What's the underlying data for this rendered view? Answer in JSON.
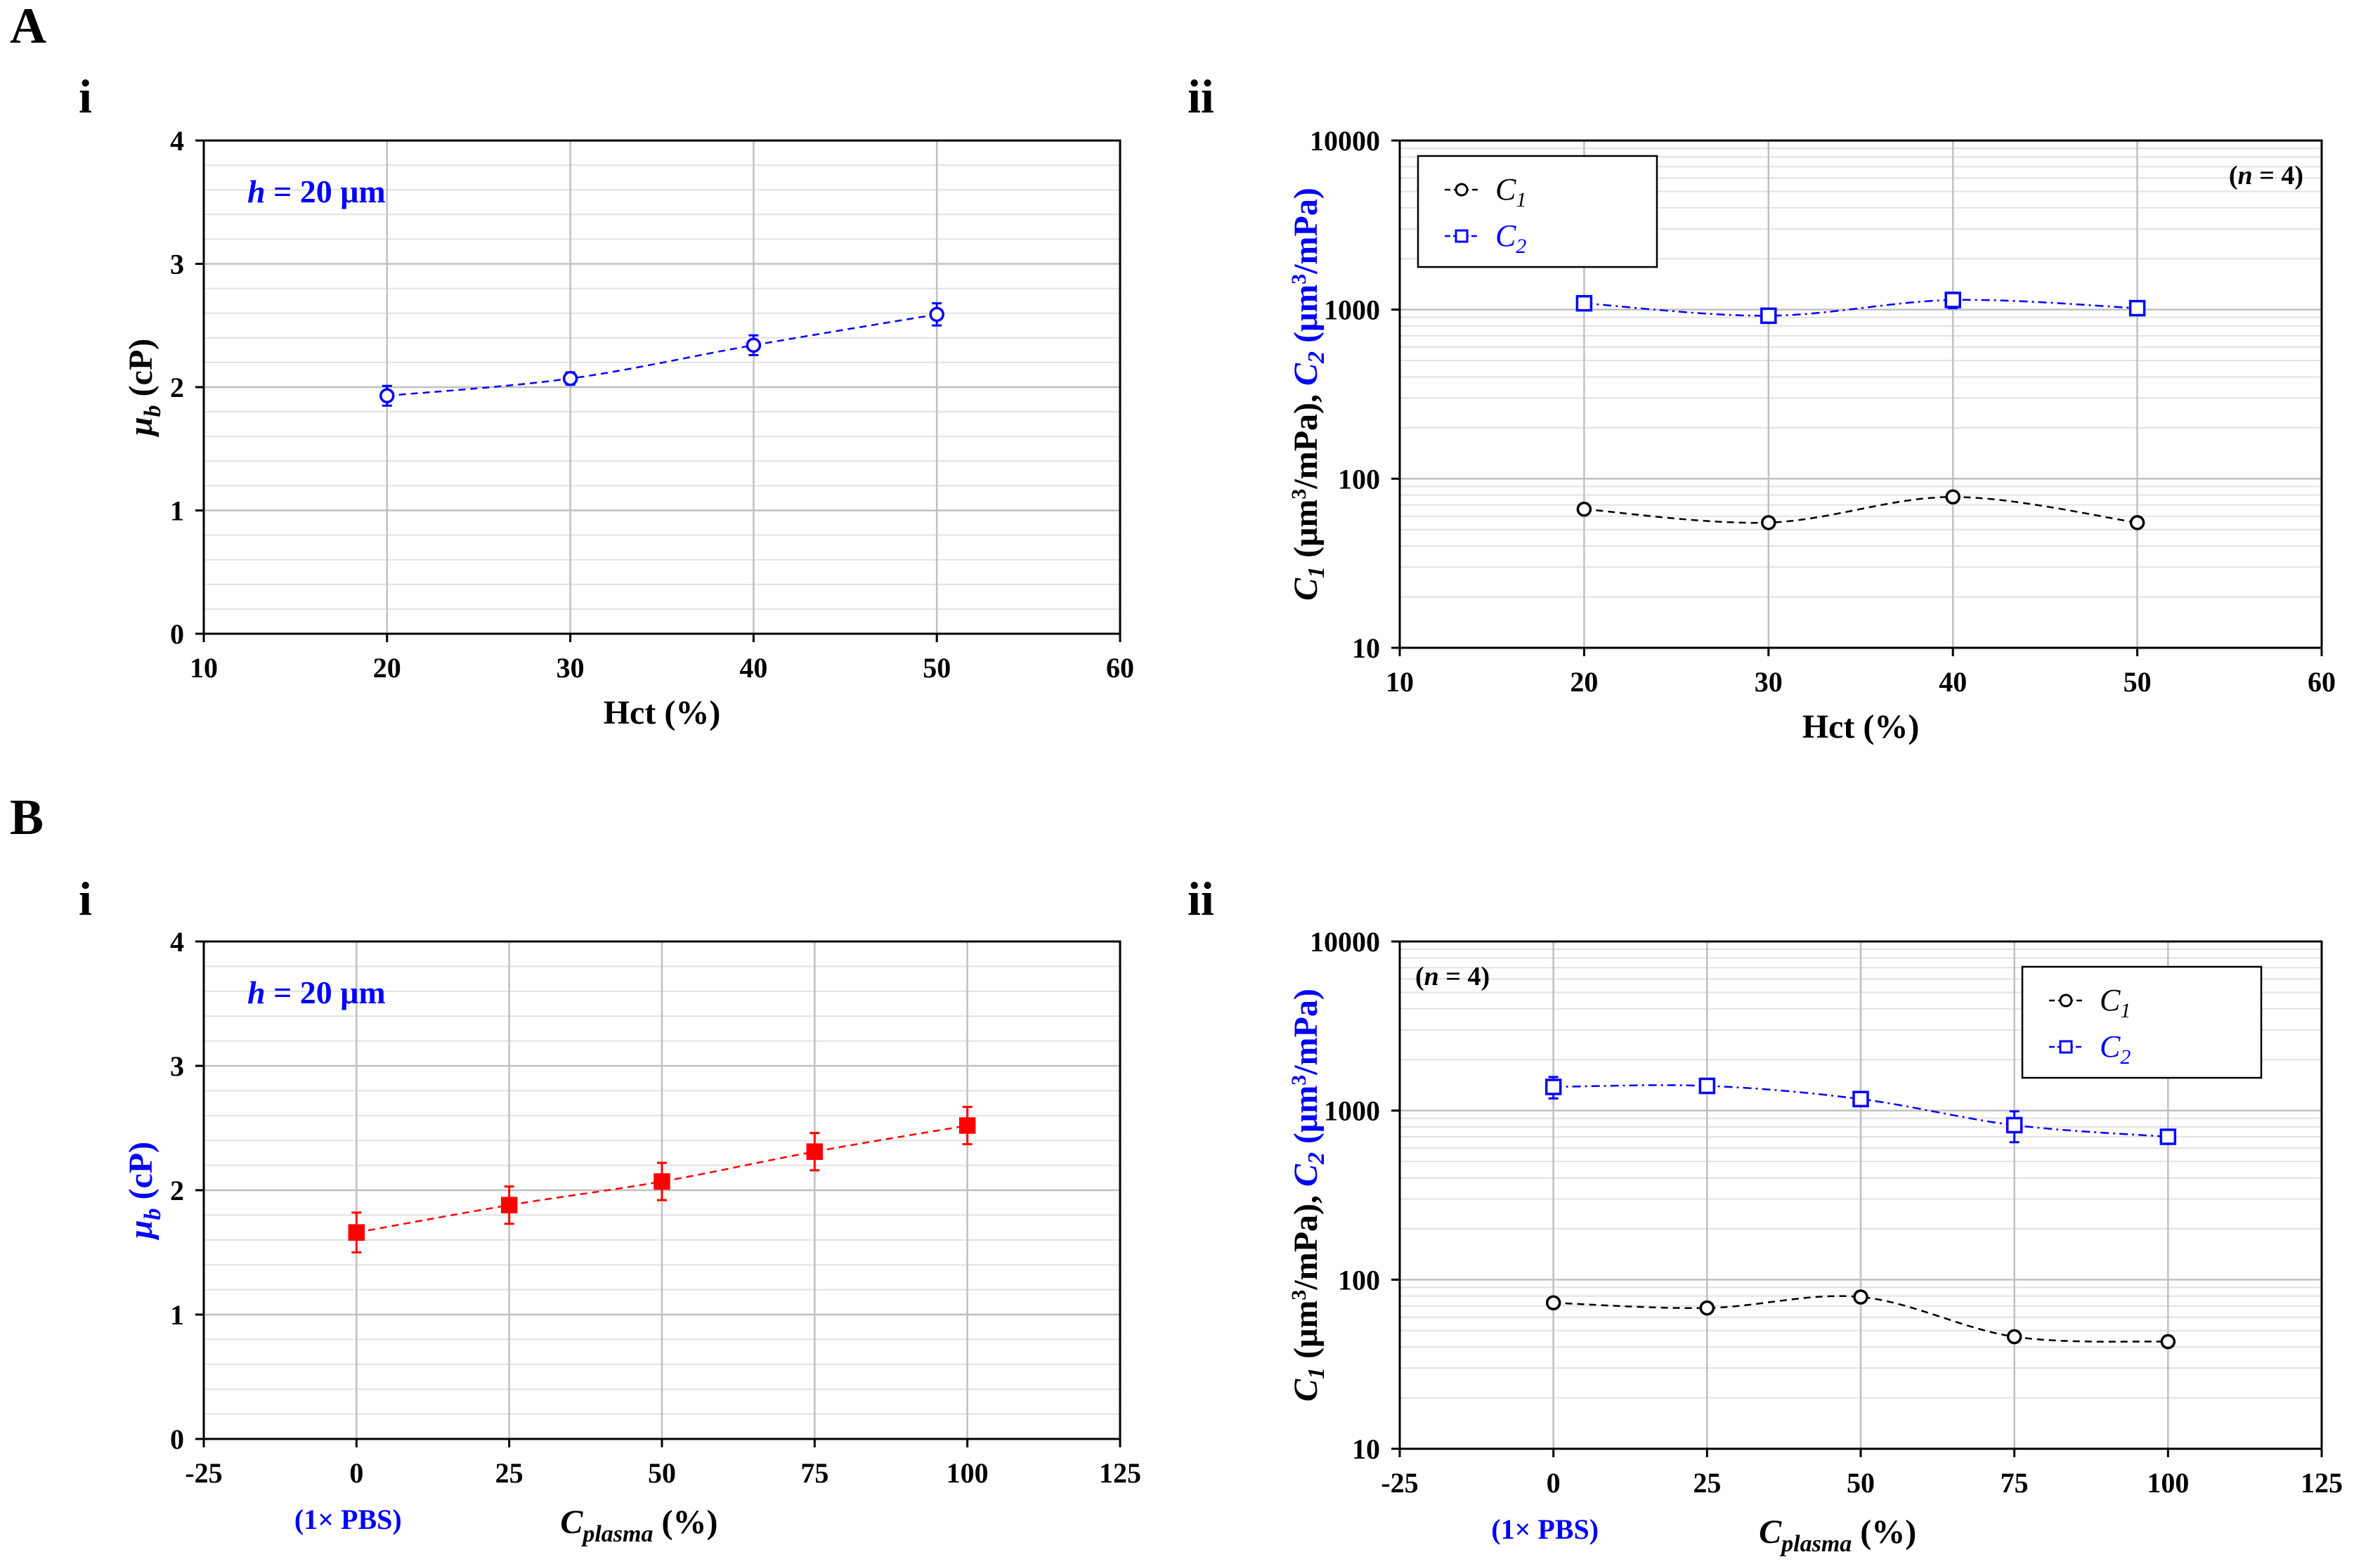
{
  "figure": {
    "panel_A": "A",
    "panel_B": "B"
  },
  "colors": {
    "blue": "#0000ff",
    "red": "#ff0000",
    "black": "#000000",
    "grid": "#c0c0c0",
    "minor_grid": "#e2e2e2"
  },
  "chart_data": [
    {
      "id": "A-i",
      "panel": "i",
      "type": "line",
      "xlabel": "Hct (%)",
      "ylabel": "μb (cP)",
      "ylabel_main": "μ",
      "ylabel_sub": "b",
      "ylabel_unit": "(cP)",
      "ylabel_color": "black",
      "xlim": [
        10,
        60
      ],
      "ylim": [
        0,
        4
      ],
      "x_ticks": [
        "10",
        "20",
        "30",
        "40",
        "50",
        "60"
      ],
      "y_ticks": [
        "0",
        "1",
        "2",
        "3",
        "4"
      ],
      "annotation": "h = 20 μm",
      "annotation_var": "h",
      "annotation_rest": " = 20 μm",
      "series": [
        {
          "name": "μb",
          "color": "blue",
          "marker": "circle",
          "filled": false,
          "dash": "dashed",
          "x": [
            20,
            30,
            40,
            50
          ],
          "values": [
            1.93,
            2.07,
            2.34,
            2.59
          ],
          "errors": [
            0.08,
            0.05,
            0.08,
            0.09
          ]
        }
      ]
    },
    {
      "id": "A-ii",
      "panel": "ii",
      "type": "line",
      "yscale": "log",
      "xlabel": "Hct (%)",
      "ylabel_c1": "C1 (μm3/mPa),",
      "ylabel_c2": "C2 (μm3/mPa)",
      "xlim": [
        10,
        60
      ],
      "ylim": [
        10,
        10000
      ],
      "x_ticks": [
        "10",
        "20",
        "30",
        "40",
        "50",
        "60"
      ],
      "y_ticks": [
        "10",
        "100",
        "1000",
        "10000"
      ],
      "n_label": "(n = 4)",
      "n_var": "n",
      "n_rest": " = 4",
      "legend_position": "top-left",
      "series": [
        {
          "name": "C1",
          "color": "black",
          "marker": "circle",
          "filled": false,
          "dash": "dashed",
          "x": [
            20,
            30,
            40,
            50
          ],
          "values": [
            66,
            55,
            78,
            55
          ],
          "errors": [
            3,
            3,
            4,
            3
          ]
        },
        {
          "name": "C2",
          "color": "blue",
          "marker": "square",
          "filled": false,
          "dash": "dashdot",
          "x": [
            20,
            30,
            40,
            50
          ],
          "values": [
            1090,
            920,
            1140,
            1020
          ],
          "errors": [
            80,
            60,
            120,
            70
          ]
        }
      ]
    },
    {
      "id": "B-i",
      "panel": "i",
      "type": "line",
      "xlabel": "Cplasma (%)",
      "xlabel_main": "C",
      "xlabel_sub": "plasma",
      "xlabel_unit": "(%)",
      "pbs_label": "(1× PBS)",
      "ylabel": "μb (cP)",
      "ylabel_main": "μ",
      "ylabel_sub": "b",
      "ylabel_unit": "(cP)",
      "ylabel_color": "blue",
      "xlim": [
        -25,
        125
      ],
      "ylim": [
        0,
        4
      ],
      "x_ticks": [
        "-25",
        "0",
        "25",
        "50",
        "75",
        "100",
        "125"
      ],
      "y_ticks": [
        "0",
        "1",
        "2",
        "3",
        "4"
      ],
      "annotation": "h = 20 μm",
      "annotation_var": "h",
      "annotation_rest": " = 20 μm",
      "series": [
        {
          "name": "μb",
          "color": "red",
          "marker": "square",
          "filled": true,
          "dash": "dashed",
          "x": [
            0,
            25,
            50,
            75,
            100
          ],
          "values": [
            1.66,
            1.88,
            2.07,
            2.31,
            2.52
          ],
          "errors": [
            0.16,
            0.15,
            0.15,
            0.15,
            0.15
          ]
        }
      ]
    },
    {
      "id": "B-ii",
      "panel": "ii",
      "type": "line",
      "yscale": "log",
      "xlabel": "Cplasma (%)",
      "xlabel_main": "C",
      "xlabel_sub": "plasma",
      "xlabel_unit": "(%)",
      "pbs_label": "(1× PBS)",
      "ylabel_c1": "C1 (μm3/mPa),",
      "ylabel_c2": "C2 (μm3/mPa)",
      "xlim": [
        -25,
        125
      ],
      "ylim": [
        10,
        10000
      ],
      "x_ticks": [
        "-25",
        "0",
        "25",
        "50",
        "75",
        "100",
        "125"
      ],
      "y_ticks": [
        "10",
        "100",
        "1000",
        "10000"
      ],
      "n_label": "(n = 4)",
      "n_var": "n",
      "n_rest": " = 4",
      "legend_position": "top-right",
      "series": [
        {
          "name": "C1",
          "color": "black",
          "marker": "circle",
          "filled": false,
          "dash": "dashed",
          "x": [
            0,
            25,
            50,
            75,
            100
          ],
          "values": [
            73,
            68,
            79,
            46,
            43
          ],
          "errors": [
            3,
            3,
            3,
            3,
            2
          ]
        },
        {
          "name": "C2",
          "color": "blue",
          "marker": "square",
          "filled": false,
          "dash": "dashdot",
          "x": [
            0,
            25,
            50,
            75,
            100
          ],
          "values": [
            1380,
            1400,
            1170,
            820,
            700
          ],
          "errors": [
            200,
            90,
            90,
            170,
            50
          ]
        }
      ]
    }
  ]
}
